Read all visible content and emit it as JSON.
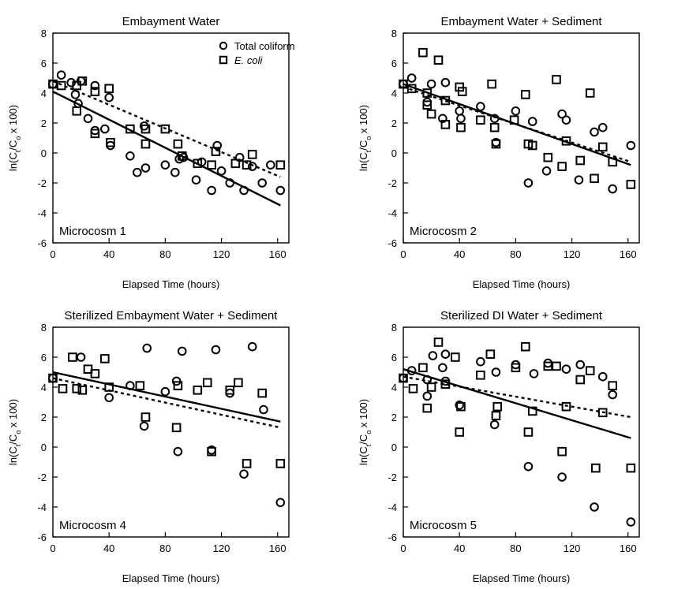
{
  "chart_data": [
    {
      "type": "scatter",
      "title": "Embayment Water",
      "annotation": "Microcosm 1",
      "xlabel": "Elapsed Time (hours)",
      "ylabel": "ln(C_t/C_o x 100)",
      "xlim": [
        0,
        168
      ],
      "ylim": [
        -6,
        8
      ],
      "xticks": [
        0,
        40,
        80,
        120,
        160
      ],
      "yticks": [
        -6,
        -4,
        -2,
        0,
        2,
        4,
        6,
        8
      ],
      "legend": {
        "position": "top-right",
        "entries": [
          {
            "marker": "circle",
            "label": "Total coliform"
          },
          {
            "marker": "square",
            "label": "E. coli"
          }
        ]
      },
      "series": [
        {
          "name": "Total coliform",
          "marker": "circle",
          "points": [
            [
              0,
              4.6
            ],
            [
              6,
              5.2
            ],
            [
              13,
              4.7
            ],
            [
              16,
              3.9
            ],
            [
              18,
              3.3
            ],
            [
              20,
              4.8
            ],
            [
              25,
              2.3
            ],
            [
              30,
              4.5
            ],
            [
              30,
              1.5
            ],
            [
              37,
              1.6
            ],
            [
              40,
              3.7
            ],
            [
              41,
              0.5
            ],
            [
              55,
              -0.2
            ],
            [
              60,
              -1.3
            ],
            [
              65,
              1.8
            ],
            [
              66,
              -1.0
            ],
            [
              80,
              -0.8
            ],
            [
              87,
              -1.3
            ],
            [
              90,
              -0.4
            ],
            [
              93,
              -0.3
            ],
            [
              102,
              -1.8
            ],
            [
              106,
              -0.6
            ],
            [
              113,
              -2.5
            ],
            [
              117,
              0.5
            ],
            [
              120,
              -1.2
            ],
            [
              126,
              -2.0
            ],
            [
              133,
              -0.3
            ],
            [
              136,
              -2.5
            ],
            [
              142,
              -0.9
            ],
            [
              149,
              -2.0
            ],
            [
              155,
              -0.8
            ],
            [
              162,
              -2.5
            ]
          ]
        },
        {
          "name": "E. coli",
          "marker": "square",
          "points": [
            [
              0,
              4.6
            ],
            [
              6,
              4.5
            ],
            [
              17,
              4.5
            ],
            [
              17,
              2.8
            ],
            [
              21,
              4.8
            ],
            [
              30,
              4.1
            ],
            [
              30,
              1.3
            ],
            [
              40,
              4.3
            ],
            [
              41,
              0.7
            ],
            [
              55,
              1.6
            ],
            [
              66,
              1.6
            ],
            [
              66,
              0.6
            ],
            [
              80,
              1.6
            ],
            [
              89,
              0.6
            ],
            [
              92,
              -0.2
            ],
            [
              103,
              -0.7
            ],
            [
              113,
              -0.8
            ],
            [
              116,
              0.1
            ],
            [
              130,
              -0.7
            ],
            [
              138,
              -0.8
            ],
            [
              142,
              -0.1
            ],
            [
              162,
              -0.8
            ]
          ]
        }
      ],
      "fit_lines": [
        {
          "style": "solid",
          "from": [
            0,
            4.1
          ],
          "to": [
            162,
            -3.5
          ]
        },
        {
          "style": "dotted",
          "from": [
            0,
            4.8
          ],
          "to": [
            162,
            -1.6
          ]
        }
      ]
    },
    {
      "type": "scatter",
      "title": "Embayment Water + Sediment",
      "annotation": "Microcosm 2",
      "xlabel": "Elapsed Time (hours)",
      "ylabel": "ln(C_t/C_o x 100)",
      "xlim": [
        0,
        168
      ],
      "ylim": [
        -6,
        8
      ],
      "xticks": [
        0,
        40,
        80,
        120,
        160
      ],
      "yticks": [
        -6,
        -4,
        -2,
        0,
        2,
        4,
        6,
        8
      ],
      "series": [
        {
          "name": "Total coliform",
          "marker": "circle",
          "points": [
            [
              0,
              4.6
            ],
            [
              6,
              5.0
            ],
            [
              17,
              3.4
            ],
            [
              20,
              4.6
            ],
            [
              28,
              2.3
            ],
            [
              30,
              4.7
            ],
            [
              40,
              2.8
            ],
            [
              41,
              2.3
            ],
            [
              55,
              3.1
            ],
            [
              65,
              2.3
            ],
            [
              66,
              0.7
            ],
            [
              80,
              2.8
            ],
            [
              89,
              -2.0
            ],
            [
              92,
              2.1
            ],
            [
              102,
              -1.2
            ],
            [
              113,
              2.6
            ],
            [
              116,
              2.2
            ],
            [
              125,
              -1.8
            ],
            [
              136,
              1.4
            ],
            [
              142,
              1.7
            ],
            [
              149,
              -2.4
            ],
            [
              162,
              0.5
            ]
          ]
        },
        {
          "name": "E. coli",
          "marker": "square",
          "points": [
            [
              0,
              4.6
            ],
            [
              6,
              4.3
            ],
            [
              14,
              6.7
            ],
            [
              17,
              3.2
            ],
            [
              17,
              4.0
            ],
            [
              20,
              2.6
            ],
            [
              25,
              6.2
            ],
            [
              30,
              3.5
            ],
            [
              30,
              1.9
            ],
            [
              40,
              4.4
            ],
            [
              41,
              1.7
            ],
            [
              42,
              4.1
            ],
            [
              55,
              2.2
            ],
            [
              63,
              4.6
            ],
            [
              65,
              1.7
            ],
            [
              66,
              0.6
            ],
            [
              79,
              2.2
            ],
            [
              87,
              3.9
            ],
            [
              89,
              0.6
            ],
            [
              92,
              0.5
            ],
            [
              103,
              -0.3
            ],
            [
              109,
              4.9
            ],
            [
              113,
              -0.9
            ],
            [
              116,
              0.8
            ],
            [
              126,
              -0.5
            ],
            [
              133,
              4.0
            ],
            [
              136,
              -1.7
            ],
            [
              142,
              0.4
            ],
            [
              149,
              -0.6
            ],
            [
              162,
              -2.1
            ]
          ]
        }
      ],
      "fit_lines": [
        {
          "style": "solid",
          "from": [
            0,
            4.6
          ],
          "to": [
            162,
            -0.8
          ]
        },
        {
          "style": "dotted",
          "from": [
            0,
            4.4
          ],
          "to": [
            162,
            -0.6
          ]
        }
      ]
    },
    {
      "type": "scatter",
      "title": "Sterilized Embayment Water + Sediment",
      "annotation": "Microcosm 4",
      "xlabel": "Elapsed Time (hours)",
      "ylabel": "ln(C_t/C_o x 100)",
      "xlim": [
        0,
        168
      ],
      "ylim": [
        -6,
        8
      ],
      "xticks": [
        0,
        40,
        80,
        120,
        160
      ],
      "yticks": [
        -6,
        -4,
        -2,
        0,
        2,
        4,
        6,
        8
      ],
      "series": [
        {
          "name": "Total coliform",
          "marker": "circle",
          "points": [
            [
              0,
              4.6
            ],
            [
              20,
              6.0
            ],
            [
              40,
              3.3
            ],
            [
              55,
              4.1
            ],
            [
              65,
              1.4
            ],
            [
              67,
              6.6
            ],
            [
              80,
              3.7
            ],
            [
              88,
              4.4
            ],
            [
              89,
              -0.3
            ],
            [
              92,
              6.4
            ],
            [
              113,
              -0.2
            ],
            [
              116,
              6.5
            ],
            [
              126,
              3.6
            ],
            [
              136,
              -1.8
            ],
            [
              142,
              6.7
            ],
            [
              150,
              2.5
            ],
            [
              162,
              -3.7
            ]
          ]
        },
        {
          "name": "E. coli",
          "marker": "square",
          "points": [
            [
              0,
              4.6
            ],
            [
              7,
              3.9
            ],
            [
              14,
              6.0
            ],
            [
              17,
              3.9
            ],
            [
              21,
              3.8
            ],
            [
              25,
              5.2
            ],
            [
              30,
              4.9
            ],
            [
              37,
              5.9
            ],
            [
              40,
              4.0
            ],
            [
              62,
              4.1
            ],
            [
              66,
              2.0
            ],
            [
              88,
              1.3
            ],
            [
              89,
              4.1
            ],
            [
              103,
              3.8
            ],
            [
              110,
              4.3
            ],
            [
              113,
              -0.3
            ],
            [
              126,
              3.8
            ],
            [
              132,
              4.3
            ],
            [
              138,
              -1.1
            ],
            [
              149,
              3.6
            ],
            [
              162,
              -1.1
            ]
          ]
        }
      ],
      "fit_lines": [
        {
          "style": "solid",
          "from": [
            0,
            5.0
          ],
          "to": [
            162,
            1.7
          ]
        },
        {
          "style": "dotted",
          "from": [
            0,
            4.6
          ],
          "to": [
            162,
            1.3
          ]
        }
      ]
    },
    {
      "type": "scatter",
      "title": "Sterilized DI Water + Sediment",
      "annotation": "Microcosm 5",
      "xlabel": "Elapsed Time (hours)",
      "ylabel": "ln(C_t/C_o x 100)",
      "xlim": [
        0,
        168
      ],
      "ylim": [
        -6,
        8
      ],
      "xticks": [
        0,
        40,
        80,
        120,
        160
      ],
      "yticks": [
        -6,
        -4,
        -2,
        0,
        2,
        4,
        6,
        8
      ],
      "series": [
        {
          "name": "Total coliform",
          "marker": "circle",
          "points": [
            [
              0,
              4.6
            ],
            [
              6,
              5.1
            ],
            [
              17,
              4.5
            ],
            [
              17,
              3.4
            ],
            [
              21,
              6.1
            ],
            [
              28,
              5.3
            ],
            [
              30,
              4.4
            ],
            [
              30,
              6.2
            ],
            [
              40,
              2.8
            ],
            [
              55,
              5.7
            ],
            [
              65,
              1.5
            ],
            [
              66,
              5.0
            ],
            [
              80,
              5.5
            ],
            [
              89,
              -1.3
            ],
            [
              93,
              4.9
            ],
            [
              103,
              5.6
            ],
            [
              113,
              -2.0
            ],
            [
              116,
              5.2
            ],
            [
              126,
              5.5
            ],
            [
              136,
              -4.0
            ],
            [
              142,
              4.7
            ],
            [
              149,
              3.5
            ],
            [
              162,
              -5.0
            ]
          ]
        },
        {
          "name": "E. coli",
          "marker": "square",
          "points": [
            [
              0,
              4.6
            ],
            [
              7,
              3.9
            ],
            [
              14,
              5.3
            ],
            [
              17,
              2.6
            ],
            [
              20,
              4.0
            ],
            [
              25,
              7.0
            ],
            [
              30,
              4.2
            ],
            [
              37,
              6.0
            ],
            [
              40,
              1.0
            ],
            [
              41,
              2.7
            ],
            [
              55,
              4.8
            ],
            [
              62,
              6.2
            ],
            [
              66,
              2.1
            ],
            [
              67,
              2.7
            ],
            [
              80,
              5.3
            ],
            [
              87,
              6.7
            ],
            [
              89,
              1.0
            ],
            [
              92,
              2.4
            ],
            [
              103,
              5.4
            ],
            [
              109,
              5.4
            ],
            [
              113,
              -0.3
            ],
            [
              116,
              2.7
            ],
            [
              126,
              4.5
            ],
            [
              133,
              5.1
            ],
            [
              137,
              -1.4
            ],
            [
              142,
              2.3
            ],
            [
              149,
              4.1
            ],
            [
              162,
              -1.4
            ]
          ]
        }
      ],
      "fit_lines": [
        {
          "style": "solid",
          "from": [
            0,
            5.2
          ],
          "to": [
            162,
            0.6
          ]
        },
        {
          "style": "dotted",
          "from": [
            0,
            4.7
          ],
          "to": [
            162,
            2.0
          ]
        }
      ]
    }
  ]
}
